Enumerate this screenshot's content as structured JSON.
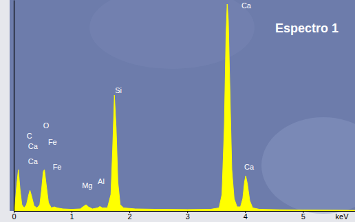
{
  "chart_data": {
    "type": "area",
    "title": "Espectro 1",
    "x_label": "keV",
    "x": [
      0.0,
      0.02,
      0.05,
      0.08,
      0.11,
      0.14,
      0.18,
      0.22,
      0.26,
      0.28,
      0.31,
      0.35,
      0.4,
      0.45,
      0.48,
      0.51,
      0.53,
      0.56,
      0.6,
      0.65,
      0.7,
      0.75,
      0.85,
      1.0,
      1.15,
      1.22,
      1.25,
      1.29,
      1.36,
      1.45,
      1.49,
      1.53,
      1.62,
      1.68,
      1.71,
      1.74,
      1.77,
      1.8,
      1.84,
      1.9,
      2.1,
      2.5,
      3.0,
      3.4,
      3.55,
      3.6,
      3.64,
      3.67,
      3.69,
      3.71,
      3.74,
      3.77,
      3.81,
      3.86,
      3.92,
      3.96,
      3.99,
      4.01,
      4.04,
      4.08,
      4.13,
      4.25,
      4.6,
      5.0,
      5.5,
      5.9
    ],
    "series": [
      {
        "color": "#ffff00",
        "values": [
          0,
          2,
          12,
          20,
          10,
          3,
          1.5,
          3,
          8,
          10,
          7,
          2.5,
          1.5,
          3,
          10,
          19,
          20,
          13,
          4,
          1.5,
          2,
          1.5,
          1,
          0.8,
          1,
          2.5,
          3,
          2,
          1,
          1.5,
          2.2,
          1.5,
          1.5,
          8,
          30,
          56,
          40,
          14,
          3,
          1.5,
          1,
          0.8,
          0.7,
          0.8,
          1.5,
          8,
          40,
          85,
          100,
          92,
          55,
          20,
          6,
          2,
          2,
          6,
          14,
          17,
          13,
          5,
          1.5,
          0.8,
          0.6,
          0.5,
          0.4,
          0.3
        ]
      }
    ],
    "xlim": [
      0,
      5.9
    ],
    "xticks": [
      0,
      1,
      2,
      3,
      4,
      5
    ],
    "ylim": [
      0,
      102
    ],
    "tick_labels": "x",
    "annotations": [
      {
        "text": "C",
        "x": 0.27,
        "y": 36
      },
      {
        "text": "O",
        "x": 0.56,
        "y": 41
      },
      {
        "text": "Ca",
        "x": 0.33,
        "y": 31
      },
      {
        "text": "Fe",
        "x": 0.67,
        "y": 33
      },
      {
        "text": "Ca",
        "x": 0.33,
        "y": 23.5
      },
      {
        "text": "Fe",
        "x": 0.75,
        "y": 21
      },
      {
        "text": "Mg",
        "x": 1.27,
        "y": 12
      },
      {
        "text": "Al",
        "x": 1.51,
        "y": 14
      },
      {
        "text": "Si",
        "x": 1.81,
        "y": 58
      },
      {
        "text": "Ca",
        "x": 4.02,
        "y": 99
      },
      {
        "text": "Ca",
        "x": 4.07,
        "y": 21
      }
    ]
  }
}
